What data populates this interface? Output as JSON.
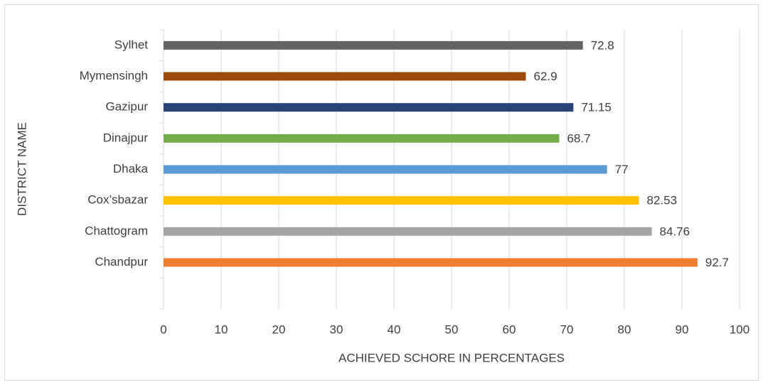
{
  "chart_data": {
    "type": "barh",
    "x_label": "ACHIEVED SCHORE IN PERCENTAGES",
    "y_label": "DISTRICT NAME",
    "categories": [
      null,
      "Chandpur",
      "Chattogram",
      "Cox’sbazar",
      "Dhaka",
      "Dinajpur",
      "Gazipur",
      "Mymensingh",
      "Sylhet"
    ],
    "values": [
      null,
      92.7,
      84.76,
      82.53,
      77,
      68.7,
      71.15,
      62.9,
      72.8
    ],
    "colors": [
      null,
      "#ed7d31",
      "#a5a5a5",
      "#ffc000",
      "#5b9bd5",
      "#70ad47",
      "#264478",
      "#9e480e",
      "#636363"
    ],
    "xlim": [
      0,
      100
    ],
    "xticks": [
      0,
      10,
      20,
      30,
      40,
      50,
      60,
      70,
      80,
      90,
      100
    ],
    "grid": true
  }
}
